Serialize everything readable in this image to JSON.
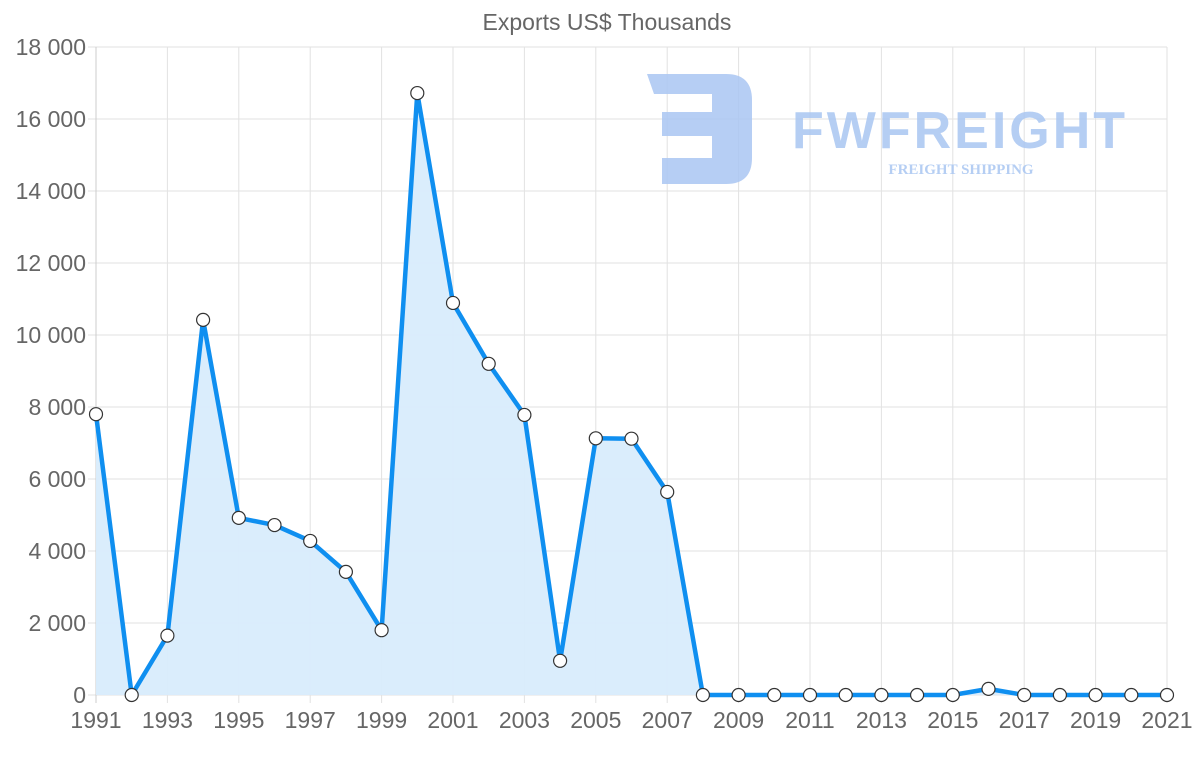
{
  "chart_data": {
    "type": "line",
    "title": "Exports US$ Thousands",
    "xlabel": "",
    "ylabel": "",
    "ylim": [
      0,
      18000
    ],
    "y_ticks": [
      "0",
      "2 000",
      "4 000",
      "6 000",
      "8 000",
      "10 000",
      "12 000",
      "14 000",
      "16 000",
      "18 000"
    ],
    "x_tick_labels": [
      "1991",
      "1993",
      "1995",
      "1997",
      "1999",
      "2001",
      "2003",
      "2005",
      "2007",
      "2009",
      "2011",
      "2013",
      "2015",
      "2017",
      "2019",
      "2021"
    ],
    "grid": true,
    "legend": "none",
    "area_fill": true,
    "x": [
      1991,
      1992,
      1993,
      1994,
      1995,
      1996,
      1997,
      1998,
      1999,
      2000,
      2001,
      2002,
      2003,
      2004,
      2005,
      2006,
      2007,
      2008,
      2009,
      2010,
      2011,
      2012,
      2013,
      2014,
      2015,
      2016,
      2017,
      2018,
      2019,
      2020,
      2021
    ],
    "series": [
      {
        "name": "Exports",
        "values": [
          7800,
          0,
          1650,
          10420,
          4920,
          4720,
          4280,
          3420,
          1800,
          16720,
          10890,
          9200,
          7780,
          950,
          7130,
          7120,
          5640,
          0,
          0,
          0,
          0,
          0,
          0,
          0,
          0,
          170,
          0,
          0,
          0,
          0,
          0
        ]
      }
    ]
  },
  "colors": {
    "line": "#0f8ff0",
    "fill": "#d8ecfc",
    "watermark": "#a9c6f2"
  },
  "watermark": {
    "brand": "FWFREIGHT",
    "tagline": "FREIGHT SHIPPING"
  }
}
